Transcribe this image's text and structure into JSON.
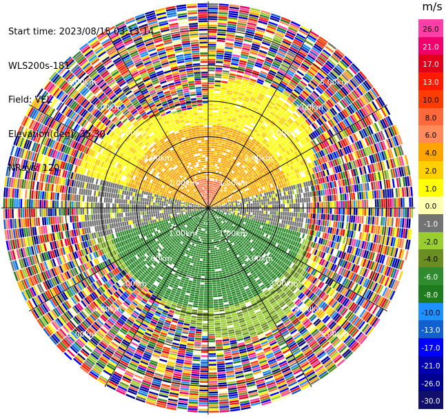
{
  "info": {
    "start_time": "Start time: 2023/08/15 03:13:14",
    "site": "WLS200s-181",
    "field": "Field: VEL",
    "elevation": "Elevation(deg): 35.30",
    "nrays": "NRays: 120"
  },
  "colorbar": {
    "unit": "m/s",
    "ticks": [
      "26.0",
      "21.0",
      "17.0",
      "13.0",
      "10.0",
      "8.0",
      "6.0",
      "4.0",
      "2.0",
      "1.0",
      "0.0",
      "-1.0",
      "-2.0",
      "-4.0",
      "-6.0",
      "-8.0",
      "-10.0",
      "-13.0",
      "-17.0",
      "-21.0",
      "-26.0",
      "-30.0"
    ],
    "colors": [
      "#ff3fa8",
      "#f0006b",
      "#e0001a",
      "#ff1a00",
      "#ff3d00",
      "#ff6a3d",
      "#ff8a5a",
      "#ffa500",
      "#ffd000",
      "#ffff00",
      "#ffffb0",
      "#737373",
      "#9acd32",
      "#6b8e23",
      "#2e8b2e",
      "#1e7b1e",
      "#1e90ff",
      "#1060d0",
      "#0000ff",
      "#0000b0",
      "#000090",
      "#10106a"
    ]
  },
  "chart_data": {
    "type": "heatmap",
    "title": "",
    "field": "VEL",
    "unit": "m/s",
    "nrays": 120,
    "elevation_deg": 35.3,
    "range_rings_km": [
      1.0,
      2.0,
      3.0,
      4.0,
      5.0
    ],
    "range_labels": [
      "1.00km",
      "2.00km",
      "3.00km",
      "4.00km",
      "5.00km"
    ],
    "colorscale_min": -30.0,
    "colorscale_max": 30.0,
    "pattern": {
      "near_range_km": 3.5,
      "north_sector": "approaching/receding positive 2.0 to 6.0 m/s (yellow-orange), core 8.0 to 13.0 m/s near center-north",
      "south_sector": "negative -2.0 to -6.0 m/s (green)",
      "east_west_band": "near 0.0 m/s (gray)",
      "far_range": "noisy, all colors"
    }
  }
}
